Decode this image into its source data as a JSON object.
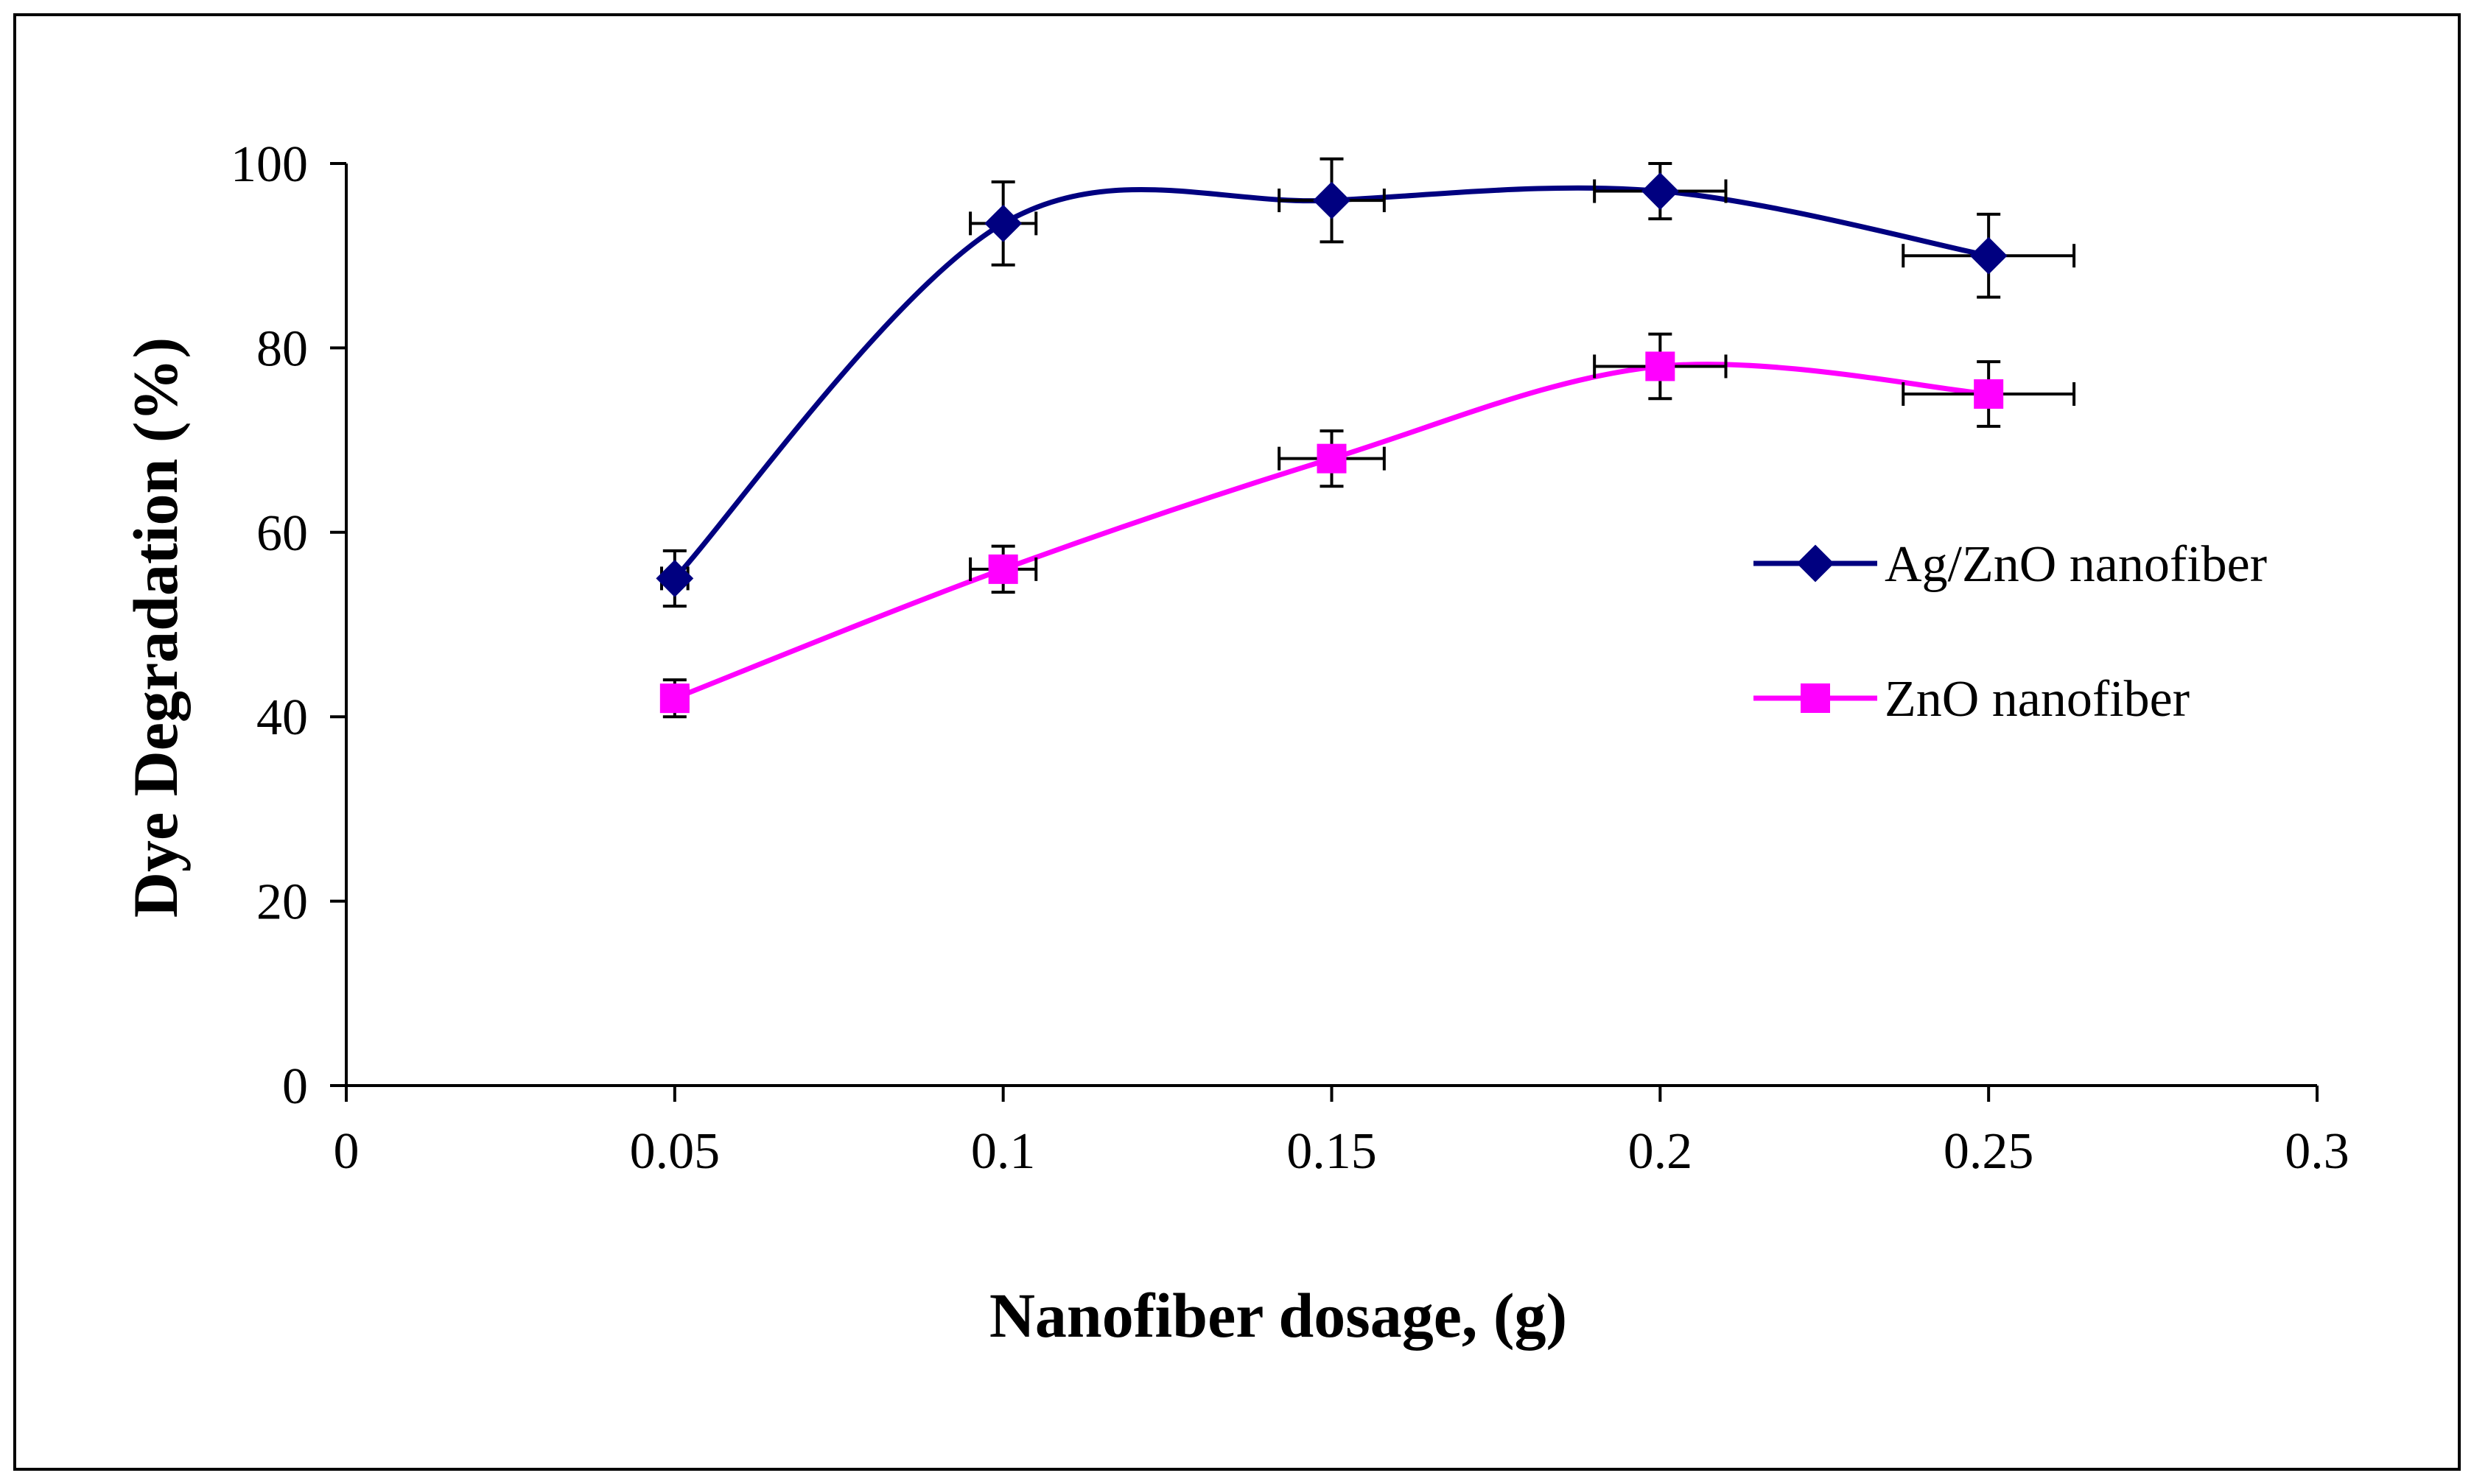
{
  "chart_data": {
    "type": "line",
    "title": "",
    "xlabel": "Nanofiber dosage, (g)",
    "ylabel": "Dye Degradation (%)",
    "xlim": [
      0,
      0.3
    ],
    "ylim": [
      0,
      100
    ],
    "xticks": [
      0,
      0.05,
      0.1,
      0.15,
      0.2,
      0.25,
      0.3
    ],
    "yticks": [
      0,
      20,
      40,
      60,
      80,
      100
    ],
    "xtick_labels": [
      "0",
      "0.05",
      "0.1",
      "0.15",
      "0.2",
      "0.25",
      "0.3"
    ],
    "ytick_labels": [
      "0",
      "20",
      "40",
      "60",
      "80",
      "100"
    ],
    "grid": false,
    "legend_position": "right",
    "series": [
      {
        "name": "Ag/ZnO nanofiber",
        "color": "#000080",
        "marker": "diamond",
        "x": [
          0.05,
          0.1,
          0.15,
          0.2,
          0.25
        ],
        "y": [
          55,
          93.5,
          96,
          97,
          90
        ],
        "y_err": [
          3,
          4.5,
          4.5,
          3,
          4.5
        ],
        "x_err": [
          0.002,
          0.005,
          0.008,
          0.01,
          0.013
        ]
      },
      {
        "name": "ZnO nanofiber",
        "color": "#FF00FF",
        "marker": "square",
        "x": [
          0.05,
          0.1,
          0.15,
          0.2,
          0.25
        ],
        "y": [
          42,
          56,
          68,
          78,
          75
        ],
        "y_err": [
          2,
          2.5,
          3,
          3.5,
          3.5
        ],
        "x_err": [
          0.002,
          0.005,
          0.008,
          0.01,
          0.013
        ]
      }
    ]
  }
}
